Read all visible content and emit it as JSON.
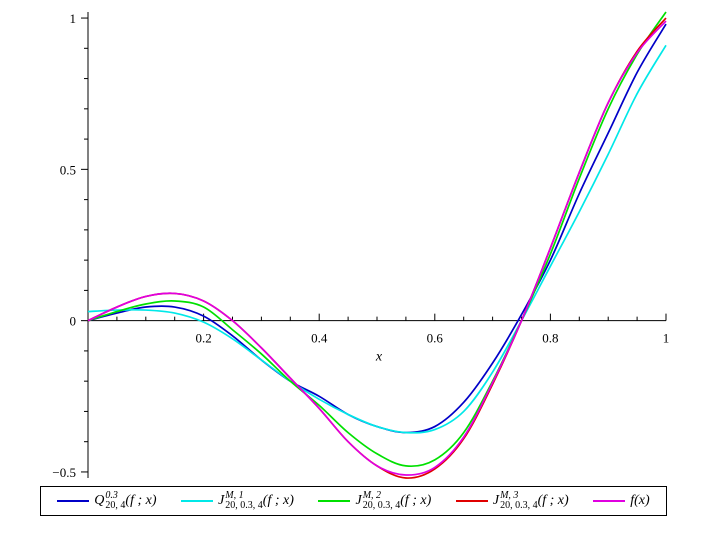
{
  "chart_data": {
    "type": "line",
    "xlabel": "x",
    "ylabel": "",
    "xlim": [
      0,
      1
    ],
    "ylim": [
      -0.52,
      1.02
    ],
    "x_ticks": [
      0.2,
      0.4,
      0.6,
      0.8,
      1
    ],
    "x_tick_labels": [
      "0.2",
      "0.4",
      "0.6",
      "0.8",
      "1"
    ],
    "y_ticks": [
      -0.5,
      0,
      0.5,
      1
    ],
    "y_tick_labels": [
      "−0.5",
      "0",
      "0.5",
      "1"
    ],
    "grid": false,
    "legend_position": "bottom",
    "x": [
      0,
      0.05,
      0.1,
      0.15,
      0.2,
      0.25,
      0.3,
      0.35,
      0.4,
      0.45,
      0.5,
      0.55,
      0.6,
      0.65,
      0.7,
      0.75,
      0.8,
      0.85,
      0.9,
      0.95,
      1
    ],
    "series": [
      {
        "legend_label": {
          "base": "Q",
          "sup": "0.3",
          "sub": "20, 4",
          "args": "(f ; x)"
        },
        "color": "#0000c8",
        "values": [
          0.0,
          0.025,
          0.045,
          0.045,
          0.015,
          -0.05,
          -0.13,
          -0.2,
          -0.25,
          -0.31,
          -0.35,
          -0.37,
          -0.35,
          -0.27,
          -0.14,
          0.02,
          0.2,
          0.42,
          0.62,
          0.82,
          0.98
        ]
      },
      {
        "legend_label": {
          "base": "J",
          "sup": "M, 1",
          "sub": "20, 0.3, 4",
          "args": "(f ; x)"
        },
        "color": "#00e8e8",
        "values": [
          0.03,
          0.035,
          0.035,
          0.025,
          -0.005,
          -0.06,
          -0.13,
          -0.2,
          -0.26,
          -0.31,
          -0.35,
          -0.37,
          -0.36,
          -0.3,
          -0.17,
          0.0,
          0.18,
          0.36,
          0.55,
          0.75,
          0.91
        ]
      },
      {
        "legend_label": {
          "base": "J",
          "sup": "M, 2",
          "sub": "20, 0.3, 4",
          "args": "(f ; x)"
        },
        "color": "#00e000",
        "values": [
          0.0,
          0.03,
          0.055,
          0.065,
          0.045,
          -0.03,
          -0.11,
          -0.2,
          -0.28,
          -0.37,
          -0.44,
          -0.48,
          -0.46,
          -0.37,
          -0.2,
          0.0,
          0.22,
          0.47,
          0.7,
          0.88,
          1.02
        ]
      },
      {
        "legend_label": {
          "base": "J",
          "sup": "M, 3",
          "sub": "20, 0.3, 4",
          "args": "(f ; x)"
        },
        "color": "#e00000",
        "values": [
          0.0,
          0.045,
          0.08,
          0.09,
          0.065,
          0.0,
          -0.09,
          -0.19,
          -0.29,
          -0.4,
          -0.48,
          -0.52,
          -0.49,
          -0.39,
          -0.21,
          0.0,
          0.24,
          0.49,
          0.72,
          0.89,
          1.0
        ]
      },
      {
        "legend_label": {
          "base": "f(x)",
          "sup": "",
          "sub": "",
          "args": ""
        },
        "color": "#e000e0",
        "values": [
          0.0,
          0.045,
          0.08,
          0.09,
          0.065,
          0.0,
          -0.09,
          -0.19,
          -0.29,
          -0.4,
          -0.48,
          -0.51,
          -0.485,
          -0.385,
          -0.205,
          0.0,
          0.24,
          0.49,
          0.72,
          0.885,
          0.99
        ]
      }
    ]
  }
}
